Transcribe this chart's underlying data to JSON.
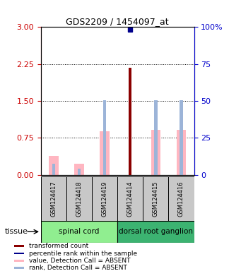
{
  "title": "GDS2209 / 1454097_at",
  "samples": [
    "GSM124417",
    "GSM124418",
    "GSM124419",
    "GSM124414",
    "GSM124415",
    "GSM124416"
  ],
  "transformed_values": [
    null,
    null,
    null,
    2.18,
    null,
    null
  ],
  "percentile_rank_left": [
    null,
    null,
    null,
    2.95,
    null,
    null
  ],
  "absent_values": [
    0.38,
    0.22,
    0.88,
    null,
    0.92,
    0.92
  ],
  "absent_ranks_left": [
    0.22,
    0.12,
    1.52,
    null,
    1.52,
    1.52
  ],
  "ylim_left": [
    0,
    3
  ],
  "ylim_right": [
    0,
    100
  ],
  "yticks_left": [
    0,
    0.75,
    1.5,
    2.25,
    3
  ],
  "yticks_right": [
    0,
    25,
    50,
    75,
    100
  ],
  "tissue_groups": [
    {
      "label": "spinal cord",
      "samples": [
        0,
        1,
        2
      ],
      "color": "#90EE90"
    },
    {
      "label": "dorsal root ganglion",
      "samples": [
        3,
        4,
        5
      ],
      "color": "#3CB371"
    }
  ],
  "absent_bar_color": "#FFB6C1",
  "absent_rank_color": "#9CB4D8",
  "transformed_color": "#8B0000",
  "percentile_color": "#00008B",
  "bg_color": "#C8C8C8",
  "label_color_left": "#CC0000",
  "label_color_right": "#0000CC",
  "fig_width": 3.41,
  "fig_height": 3.84,
  "dpi": 100
}
